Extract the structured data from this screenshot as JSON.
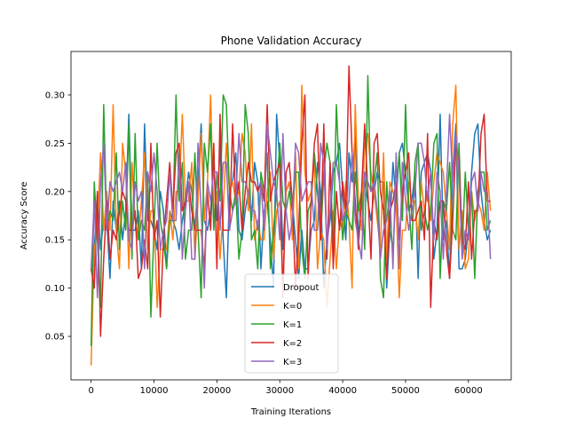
{
  "chart_data": {
    "type": "line",
    "title": "Phone Validation Accuracy",
    "xlabel": "Training Iterations",
    "ylabel": "Accuracy Score",
    "xlim": [
      -3200,
      66800
    ],
    "ylim": [
      0.005,
      0.345
    ],
    "xticks": [
      0,
      10000,
      20000,
      30000,
      40000,
      50000,
      60000
    ],
    "yticks": [
      0.05,
      0.1,
      0.15,
      0.2,
      0.25,
      0.3
    ],
    "xtick_labels": [
      "0",
      "10000",
      "20000",
      "30000",
      "40000",
      "50000",
      "60000"
    ],
    "ytick_labels": [
      "0.05",
      "0.10",
      "0.15",
      "0.20",
      "0.25",
      "0.30"
    ],
    "grid": false,
    "legend_position": "lower center",
    "x_step": 500,
    "x_start": 0,
    "x_end": 63500,
    "series": [
      {
        "name": "Dropout",
        "color": "#1f77b4",
        "seed": 11,
        "base": 0.19,
        "spread": 0.055,
        "min": 0.09,
        "max": 0.28,
        "anchors": [
          [
            0,
            0.12
          ],
          [
            3000,
            0.11
          ],
          [
            8000,
            0.12
          ],
          [
            27000,
            0.12
          ],
          [
            29000,
            0.1
          ],
          [
            33000,
            0.11
          ],
          [
            37000,
            0.1
          ],
          [
            47000,
            0.1
          ],
          [
            52000,
            0.11
          ],
          [
            59000,
            0.12
          ],
          [
            61500,
            0.27
          ]
        ]
      },
      {
        "name": "K=0",
        "color": "#ff7f0e",
        "seed": 23,
        "base": 0.19,
        "spread": 0.055,
        "min": 0.02,
        "max": 0.31,
        "anchors": [
          [
            0,
            0.02
          ],
          [
            500,
            0.14
          ],
          [
            3500,
            0.29
          ],
          [
            10500,
            0.08
          ],
          [
            19000,
            0.3
          ],
          [
            30500,
            0.1
          ],
          [
            42000,
            0.29
          ],
          [
            49000,
            0.09
          ],
          [
            58000,
            0.31
          ]
        ]
      },
      {
        "name": "K=1",
        "color": "#2ca02c",
        "seed": 37,
        "base": 0.19,
        "spread": 0.06,
        "min": 0.04,
        "max": 0.32,
        "anchors": [
          [
            0,
            0.04
          ],
          [
            500,
            0.21
          ],
          [
            2000,
            0.29
          ],
          [
            9500,
            0.07
          ],
          [
            21000,
            0.3
          ],
          [
            24500,
            0.29
          ],
          [
            44000,
            0.32
          ],
          [
            46000,
            0.11
          ],
          [
            61000,
            0.11
          ]
        ]
      },
      {
        "name": "K=2",
        "color": "#d62728",
        "seed": 53,
        "base": 0.19,
        "spread": 0.055,
        "min": 0.05,
        "max": 0.33,
        "anchors": [
          [
            0,
            0.12
          ],
          [
            1500,
            0.05
          ],
          [
            11000,
            0.07
          ],
          [
            28000,
            0.29
          ],
          [
            41000,
            0.33
          ],
          [
            43500,
            0.27
          ],
          [
            54000,
            0.08
          ],
          [
            62000,
            0.26
          ]
        ]
      },
      {
        "name": "K=3",
        "color": "#9467bd",
        "seed": 71,
        "base": 0.195,
        "spread": 0.045,
        "min": 0.1,
        "max": 0.28,
        "anchors": [
          [
            0,
            0.12
          ],
          [
            1000,
            0.09
          ],
          [
            18000,
            0.1
          ],
          [
            43000,
            0.13
          ],
          [
            57000,
            0.28
          ],
          [
            63500,
            0.13
          ]
        ]
      }
    ]
  }
}
